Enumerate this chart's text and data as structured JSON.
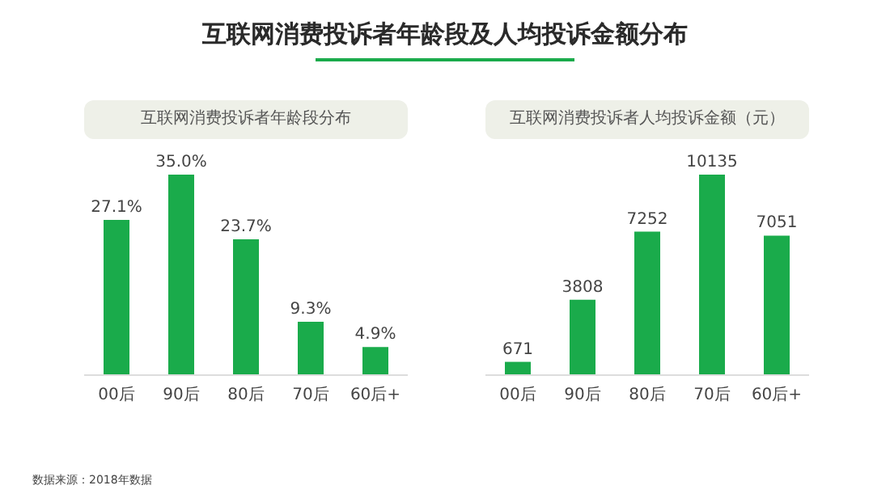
{
  "chart_data": [
    {
      "type": "bar",
      "title": "互联网消费投诉者年龄段及人均投诉金额分布",
      "subtitle": "互联网消费投诉者年龄段分布",
      "categories": [
        "00后",
        "90后",
        "80后",
        "70后",
        "60后+"
      ],
      "values": [
        27.1,
        35.0,
        23.7,
        9.3,
        4.9
      ],
      "value_labels": [
        "27.1%",
        "35.0%",
        "23.7%",
        "9.3%",
        "4.9%"
      ],
      "color": "#1aab4b",
      "tick_labels": "x",
      "annotations": [
        "数据来源：2018年数据"
      ]
    },
    {
      "type": "bar",
      "subtitle": "互联网消费投诉者人均投诉金额（元）",
      "categories": [
        "00后",
        "90后",
        "80后",
        "70后",
        "60后+"
      ],
      "values": [
        671,
        3808,
        7252,
        10135,
        7051
      ],
      "data_labels": true,
      "color": "#1aab4b",
      "tick_labels": "x"
    }
  ]
}
